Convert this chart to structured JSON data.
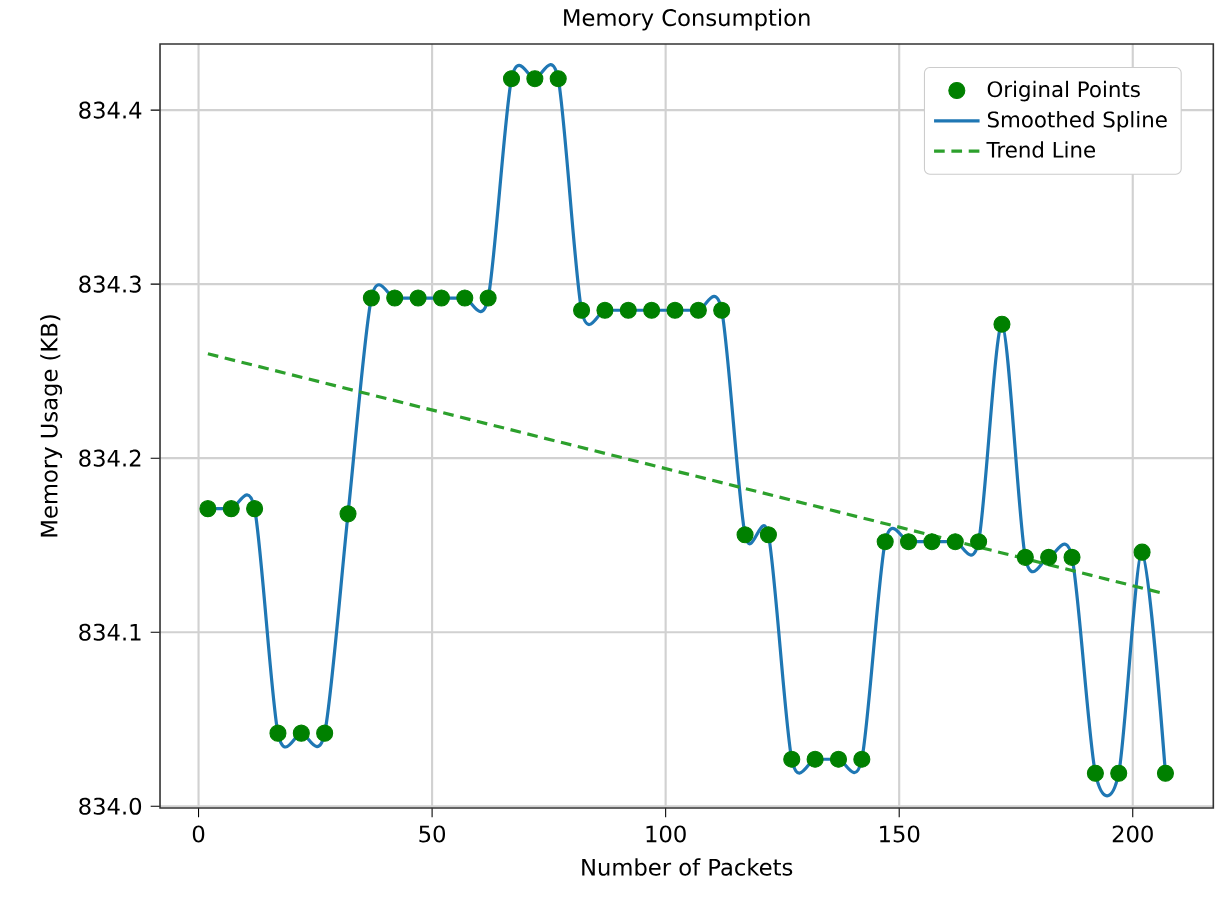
{
  "chart_data": {
    "type": "line",
    "title": "Memory Consumption",
    "xlabel": "Number of Packets",
    "ylabel": "Memory Usage (KB)",
    "xlim": [
      -8.25,
      217.25
    ],
    "ylim": [
      833.999,
      834.438
    ],
    "xticks": [
      0,
      50,
      100,
      150,
      200
    ],
    "yticks": [
      {
        "value": 834.0,
        "label": "834.0"
      },
      {
        "value": 834.1,
        "label": "834.1"
      },
      {
        "value": 834.2,
        "label": "834.2"
      },
      {
        "value": 834.3,
        "label": "834.3"
      },
      {
        "value": 834.4,
        "label": "834.4"
      }
    ],
    "grid": true,
    "legend": "top right",
    "series": [
      {
        "name": "Original Points",
        "type": "scatter",
        "marker": "circle",
        "color": "#008000",
        "x": [
          2,
          7,
          12,
          17,
          22,
          27,
          32,
          37,
          42,
          47,
          52,
          57,
          62,
          67,
          72,
          77,
          82,
          87,
          92,
          97,
          102,
          107,
          112,
          117,
          122,
          127,
          132,
          137,
          142,
          147,
          152,
          157,
          162,
          167,
          172,
          177,
          182,
          187,
          192,
          197,
          202,
          207
        ],
        "values": [
          834.171,
          834.171,
          834.171,
          834.042,
          834.042,
          834.042,
          834.168,
          834.292,
          834.292,
          834.292,
          834.292,
          834.292,
          834.292,
          834.418,
          834.418,
          834.418,
          834.285,
          834.285,
          834.285,
          834.285,
          834.285,
          834.285,
          834.285,
          834.156,
          834.156,
          834.027,
          834.027,
          834.027,
          834.027,
          834.152,
          834.152,
          834.152,
          834.152,
          834.152,
          834.277,
          834.143,
          834.143,
          834.143,
          834.019,
          834.019,
          834.146,
          834.019
        ]
      },
      {
        "name": "Smoothed Spline",
        "line_style": "solid",
        "color": "#1f77b4",
        "x": [
          2,
          7,
          12,
          17,
          22,
          27,
          32,
          37,
          42,
          47,
          52,
          57,
          62,
          67,
          72,
          77,
          82,
          87,
          92,
          97,
          102,
          107,
          112,
          117,
          122,
          127,
          132,
          137,
          142,
          147,
          152,
          157,
          162,
          167,
          172,
          177,
          182,
          187,
          192,
          197,
          202,
          207
        ],
        "values": [
          834.171,
          834.171,
          834.171,
          834.042,
          834.042,
          834.042,
          834.168,
          834.292,
          834.292,
          834.292,
          834.292,
          834.292,
          834.292,
          834.418,
          834.418,
          834.418,
          834.285,
          834.285,
          834.285,
          834.285,
          834.285,
          834.285,
          834.285,
          834.156,
          834.156,
          834.027,
          834.027,
          834.027,
          834.027,
          834.152,
          834.152,
          834.152,
          834.152,
          834.152,
          834.277,
          834.143,
          834.143,
          834.143,
          834.019,
          834.019,
          834.146,
          834.019
        ]
      },
      {
        "name": "Trend Line",
        "line_style": "dashed",
        "color": "#2ca02c",
        "x": [
          2,
          207
        ],
        "values": [
          834.26,
          834.122
        ]
      }
    ]
  }
}
